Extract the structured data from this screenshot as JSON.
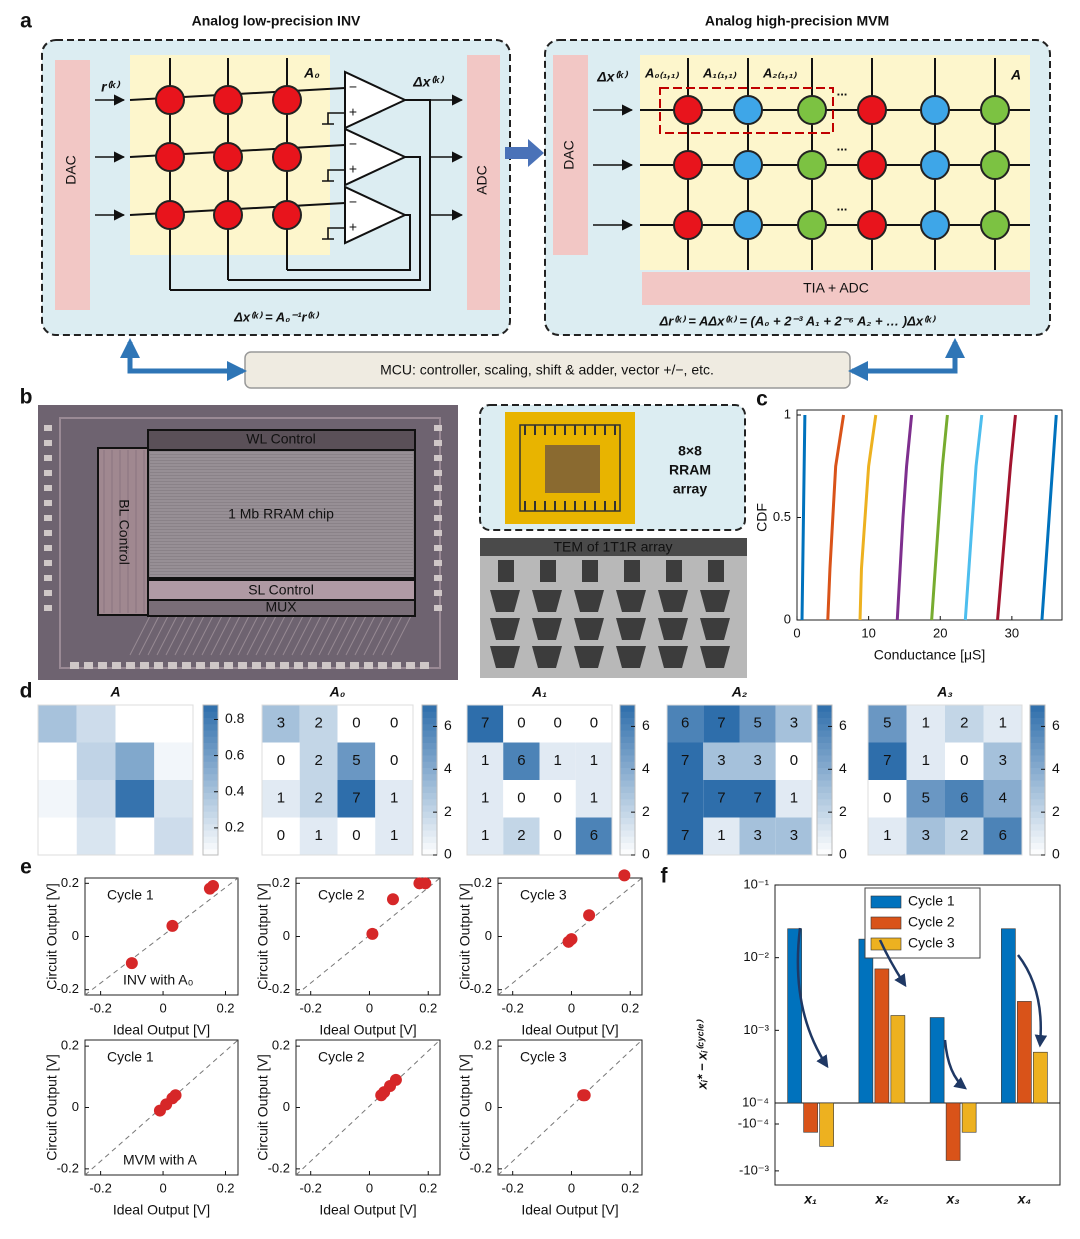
{
  "panel_labels": [
    "a",
    "b",
    "c",
    "d",
    "e",
    "f"
  ],
  "panel_a": {
    "left_title": "Analog low-precision INV",
    "right_title": "Analog high-precision MVM",
    "left_dac": "DAC",
    "adc": "ADC",
    "right_dac": "DAC",
    "tia_adc": "TIA + ADC",
    "left_input": "r⁽ᵏ⁾",
    "left_matrix": "A₀",
    "left_output": "Δx⁽ᵏ⁾",
    "right_input": "Δx⁽ᵏ⁾",
    "right_matrix": "A",
    "slice_labels": [
      "A₀₍₁,₁₎",
      "A₁₍₁,₁₎",
      "A₂₍₁,₁₎"
    ],
    "ellipsis": "...",
    "opamp_signs": [
      "−",
      "+"
    ],
    "left_equation": "Δx⁽ᵏ⁾ = A₀⁻¹r⁽ᵏ⁾",
    "right_equation": "Δr⁽ᵏ⁾ = AΔx⁽ᵏ⁾ = (A₀ + 2⁻³ A₁ + 2⁻⁶ A₂ + … )Δx⁽ᵏ⁾",
    "mcu": "MCU: controller, scaling, shift & adder, vector +/−, etc."
  },
  "panel_b": {
    "wl": "WL Control",
    "bl": "BL Control",
    "chip": "1 Mb RRAM chip",
    "sl": "SL Control",
    "mux": "MUX",
    "array_label": [
      "8×8",
      "RRAM",
      "array"
    ],
    "tem": "TEM of 1T1R array"
  },
  "chart_data": [
    {
      "type": "line",
      "xlabel": "Conductance [μS]",
      "ylabel": "CDF",
      "xlim": [
        0,
        37
      ],
      "ylim": [
        0,
        1
      ],
      "xticks": [
        0,
        10,
        20,
        30
      ],
      "yticks": [
        0,
        0.5,
        1
      ],
      "series": [
        {
          "color": "#0072bd",
          "x": [
            0.7,
            0.8,
            0.9,
            1.0,
            1.1
          ],
          "values": [
            0,
            0.25,
            0.5,
            0.75,
            1
          ]
        },
        {
          "color": "#d95319",
          "x": [
            4.3,
            4.6,
            5.0,
            5.4,
            6.5
          ],
          "values": [
            0,
            0.25,
            0.5,
            0.75,
            1
          ]
        },
        {
          "color": "#edb120",
          "x": [
            8.8,
            9.0,
            9.5,
            10,
            11
          ],
          "values": [
            0,
            0.25,
            0.5,
            0.75,
            1
          ]
        },
        {
          "color": "#7e2f8e",
          "x": [
            14,
            14.4,
            14.8,
            15.3,
            16
          ],
          "values": [
            0,
            0.25,
            0.5,
            0.75,
            1
          ]
        },
        {
          "color": "#77ac30",
          "x": [
            18.8,
            19.3,
            19.8,
            20.3,
            21
          ],
          "values": [
            0,
            0.25,
            0.5,
            0.75,
            1
          ]
        },
        {
          "color": "#4dbeee",
          "x": [
            23.5,
            24,
            24.5,
            25,
            25.8
          ],
          "values": [
            0,
            0.25,
            0.5,
            0.75,
            1
          ]
        },
        {
          "color": "#a2142f",
          "x": [
            28,
            28.6,
            29.2,
            29.8,
            30.5
          ],
          "values": [
            0,
            0.25,
            0.5,
            0.75,
            1
          ]
        },
        {
          "color": "#0072bd",
          "x": [
            34.2,
            34.7,
            35.2,
            35.7,
            36.2
          ],
          "values": [
            0,
            0.25,
            0.5,
            0.75,
            1
          ]
        }
      ]
    },
    {
      "type": "heatmap",
      "title": "A",
      "show_values": false,
      "colormap": [
        "#ffffff",
        "#2e6eab"
      ],
      "zlim": [
        0.05,
        0.88
      ],
      "zticks": [
        0.2,
        0.4,
        0.6,
        0.8
      ],
      "values": [
        [
          0.4,
          0.25,
          0.05,
          0.05
        ],
        [
          0.05,
          0.3,
          0.55,
          0.1
        ],
        [
          0.1,
          0.25,
          0.85,
          0.2
        ],
        [
          0.05,
          0.2,
          0.05,
          0.25
        ]
      ]
    },
    {
      "type": "heatmap",
      "title": "A₀",
      "show_values": true,
      "colormap": [
        "#ffffff",
        "#2e6eab"
      ],
      "zlim": [
        0,
        7
      ],
      "zticks": [
        0,
        2,
        4,
        6
      ],
      "values": [
        [
          3,
          2,
          0,
          0
        ],
        [
          0,
          2,
          5,
          0
        ],
        [
          1,
          2,
          7,
          1
        ],
        [
          0,
          1,
          0,
          1
        ]
      ]
    },
    {
      "type": "heatmap",
      "title": "A₁",
      "show_values": true,
      "colormap": [
        "#ffffff",
        "#2e6eab"
      ],
      "zlim": [
        0,
        7
      ],
      "zticks": [
        0,
        2,
        4,
        6
      ],
      "values": [
        [
          7,
          0,
          0,
          0
        ],
        [
          1,
          6,
          1,
          1
        ],
        [
          1,
          0,
          0,
          1
        ],
        [
          1,
          2,
          0,
          6
        ]
      ]
    },
    {
      "type": "heatmap",
      "title": "A₂",
      "show_values": true,
      "colormap": [
        "#ffffff",
        "#2e6eab"
      ],
      "zlim": [
        0,
        7
      ],
      "zticks": [
        0,
        2,
        4,
        6
      ],
      "values": [
        [
          6,
          7,
          5,
          3
        ],
        [
          7,
          3,
          3,
          0
        ],
        [
          7,
          7,
          7,
          1
        ],
        [
          7,
          1,
          3,
          3
        ]
      ]
    },
    {
      "type": "heatmap",
      "title": "A₃",
      "show_values": true,
      "colormap": [
        "#ffffff",
        "#2e6eab"
      ],
      "zlim": [
        0,
        7
      ],
      "zticks": [
        0,
        2,
        4,
        6
      ],
      "values": [
        [
          5,
          1,
          2,
          1
        ],
        [
          7,
          1,
          0,
          3
        ],
        [
          0,
          5,
          6,
          4
        ],
        [
          1,
          3,
          2,
          6
        ]
      ]
    },
    {
      "type": "scatter",
      "label": "Cycle 1",
      "annotation": "INV with A₀",
      "color": "#d62728",
      "xlabel": "Ideal Output [V]",
      "ylabel": "Circuit Output [V]",
      "xlim": [
        -0.25,
        0.24
      ],
      "ylim": [
        -0.22,
        0.22
      ],
      "xticks": [
        -0.2,
        0,
        0.2
      ],
      "yticks": [
        -0.2,
        0,
        0.2
      ],
      "x": [
        -0.1,
        0.03,
        0.15,
        0.16
      ],
      "values": [
        -0.1,
        0.04,
        0.18,
        0.19
      ]
    },
    {
      "type": "scatter",
      "label": "Cycle 2",
      "color": "#d62728",
      "xlabel": "Ideal Output [V]",
      "ylabel": "Circuit Output [V]",
      "xlim": [
        -0.25,
        0.24
      ],
      "ylim": [
        -0.22,
        0.22
      ],
      "xticks": [
        -0.2,
        0,
        0.2
      ],
      "yticks": [
        -0.2,
        0,
        0.2
      ],
      "x": [
        0.01,
        0.08,
        0.17,
        0.19
      ],
      "values": [
        0.01,
        0.14,
        0.2,
        0.2
      ]
    },
    {
      "type": "scatter",
      "label": "Cycle 3",
      "color": "#d62728",
      "xlabel": "Ideal Output [V]",
      "ylabel": "Circuit Output [V]",
      "xlim": [
        -0.25,
        0.24
      ],
      "ylim": [
        -0.22,
        0.22
      ],
      "xticks": [
        -0.2,
        0,
        0.2
      ],
      "yticks": [
        -0.2,
        0,
        0.2
      ],
      "x": [
        -0.01,
        0,
        0.06,
        0.18
      ],
      "values": [
        -0.02,
        -0.01,
        0.08,
        0.23
      ]
    },
    {
      "type": "scatter",
      "label": "Cycle 1",
      "annotation": "MVM with A",
      "color": "#d62728",
      "xlabel": "Ideal Output [V]",
      "ylabel": "Circuit Output [V]",
      "xlim": [
        -0.25,
        0.24
      ],
      "ylim": [
        -0.22,
        0.22
      ],
      "xticks": [
        -0.2,
        0,
        0.2
      ],
      "yticks": [
        -0.2,
        0,
        0.2
      ],
      "x": [
        -0.01,
        0.01,
        0.03,
        0.04
      ],
      "values": [
        -0.01,
        0.01,
        0.03,
        0.04
      ]
    },
    {
      "type": "scatter",
      "label": "Cycle 2",
      "color": "#d62728",
      "xlabel": "Ideal Output [V]",
      "ylabel": "Circuit Output [V]",
      "xlim": [
        -0.25,
        0.24
      ],
      "ylim": [
        -0.22,
        0.22
      ],
      "xticks": [
        -0.2,
        0,
        0.2
      ],
      "yticks": [
        -0.2,
        0,
        0.2
      ],
      "x": [
        0.04,
        0.05,
        0.07,
        0.09
      ],
      "values": [
        0.04,
        0.05,
        0.07,
        0.09
      ]
    },
    {
      "type": "scatter",
      "label": "Cycle 3",
      "color": "#d62728",
      "xlabel": "Ideal Output [V]",
      "ylabel": "Circuit Output [V]",
      "xlim": [
        -0.25,
        0.24
      ],
      "ylim": [
        -0.22,
        0.22
      ],
      "xticks": [
        -0.2,
        0,
        0.2
      ],
      "yticks": [
        -0.2,
        0,
        0.2
      ],
      "x": [
        0.04,
        0.045
      ],
      "values": [
        0.04,
        0.04
      ]
    },
    {
      "type": "bar",
      "scale": "symlog",
      "legend": "top",
      "ylabel": "xᵢ* − xᵢ⁽ᶜʸᶜˡᵉ⁾",
      "categories": [
        "x₁",
        "x₂",
        "x₃",
        "x₄"
      ],
      "ylim": [
        -0.002,
        0.1
      ],
      "yticks": [
        {
          "value": 0.1,
          "label": "10⁻¹"
        },
        {
          "value": 0.01,
          "label": "10⁻²"
        },
        {
          "value": 0.001,
          "label": "10⁻³"
        },
        {
          "value": 0.0001,
          "label": "10⁻⁴"
        },
        {
          "value": -0.0001,
          "label": "-10⁻⁴"
        },
        {
          "value": -0.001,
          "label": "-10⁻³"
        }
      ],
      "series": [
        {
          "name": "Cycle 1",
          "color": "#0072bd",
          "values": [
            0.025,
            0.018,
            0.0015,
            0.025
          ]
        },
        {
          "name": "Cycle 2",
          "color": "#d95319",
          "values": [
            -0.00015,
            0.007,
            -0.0006,
            0.0025
          ]
        },
        {
          "name": "Cycle 3",
          "color": "#edb120",
          "values": [
            -0.0003,
            0.0016,
            -0.00015,
            0.0005
          ]
        }
      ]
    }
  ]
}
